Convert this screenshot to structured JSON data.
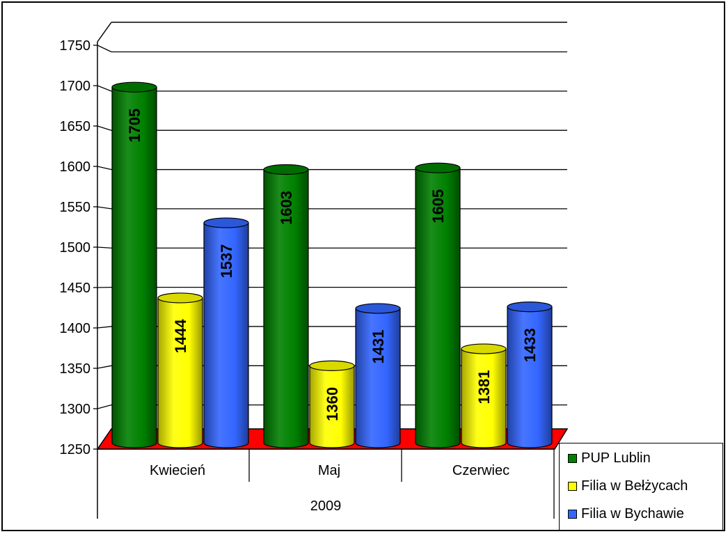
{
  "chart_data": {
    "type": "bar",
    "categories": [
      "Kwiecień",
      "Maj",
      "Czerwiec"
    ],
    "group_label": "2009",
    "series": [
      {
        "name": "PUP Lublin",
        "color": "#008000",
        "values": [
          1705,
          1603,
          1605
        ]
      },
      {
        "name": "Filia w Bełżycach",
        "color": "#ffff00",
        "values": [
          1444,
          1360,
          1381
        ]
      },
      {
        "name": "Filia w Bychawie",
        "color": "#3366ff",
        "values": [
          1537,
          1431,
          1433
        ]
      }
    ],
    "ylim": [
      1250,
      1750
    ],
    "yticks": [
      1250,
      1300,
      1350,
      1400,
      1450,
      1500,
      1550,
      1600,
      1650,
      1700,
      1750
    ],
    "floor_color": "#ff0000",
    "grid": true,
    "legend_position": "bottom-right"
  }
}
